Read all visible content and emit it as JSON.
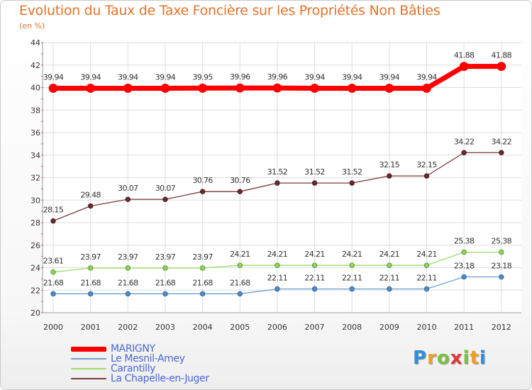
{
  "chart_data": {
    "type": "line",
    "title": "Evolution du Taux de Taxe Foncière sur les Propriétés Non Bâties",
    "subtitle": "(en %)",
    "xlabel": "",
    "ylabel": "",
    "ylim": [
      20,
      44
    ],
    "yticks": [
      20,
      22,
      24,
      26,
      28,
      30,
      32,
      34,
      36,
      38,
      40,
      42,
      44
    ],
    "grid": true,
    "categories": [
      "2000",
      "2001",
      "2002",
      "2003",
      "2004",
      "2005",
      "2006",
      "2007",
      "2008",
      "2009",
      "2010",
      "2011",
      "2012"
    ],
    "series": [
      {
        "name": "MARIGNY",
        "color": "#ff0000",
        "labels": [
          "39.94",
          "39.94",
          "39.94",
          "39.94",
          "39.95",
          "39.96",
          "39.96",
          "39.94",
          "39.94",
          "39.94",
          "39.94",
          "41.88",
          "41.88"
        ],
        "values": [
          39.94,
          39.94,
          39.94,
          39.94,
          39.95,
          39.96,
          39.96,
          39.94,
          39.94,
          39.94,
          39.94,
          41.88,
          41.88
        ]
      },
      {
        "name": "Le Mesnil-Amey",
        "color": "#6f9dd0",
        "labels": [
          "21.68",
          "21.68",
          "21.68",
          "21.68",
          "21.68",
          "21.68",
          "22.11",
          "22.11",
          "22.11",
          "22.11",
          "22.11",
          "23.18",
          "23.18"
        ],
        "values": [
          21.68,
          21.68,
          21.68,
          21.68,
          21.68,
          21.68,
          22.11,
          22.11,
          22.11,
          22.11,
          22.11,
          23.18,
          23.18
        ]
      },
      {
        "name": "Carantilly",
        "color": "#99dd66",
        "labels": [
          "23.61",
          "23.97",
          "23.97",
          "23.97",
          "23.97",
          "24.21",
          "24.21",
          "24.21",
          "24.21",
          "24.21",
          "24.21",
          "25.38",
          "25.38"
        ],
        "values": [
          23.61,
          23.97,
          23.97,
          23.97,
          23.97,
          24.21,
          24.21,
          24.21,
          24.21,
          24.21,
          24.21,
          25.38,
          25.38
        ]
      },
      {
        "name": "La Chapelle-en-Juger",
        "color": "#7a3a3a",
        "labels": [
          "28.15",
          "29.48",
          "30.07",
          "30.07",
          "30.76",
          "30.76",
          "31.52",
          "31.52",
          "31.52",
          "32.15",
          "32.15",
          "34.22",
          "34.22"
        ],
        "values": [
          28.15,
          29.48,
          30.07,
          30.07,
          30.76,
          30.76,
          31.52,
          31.52,
          31.52,
          32.15,
          32.15,
          34.22,
          34.22
        ]
      }
    ]
  },
  "legend": [
    {
      "label": "MARIGNY",
      "color": "#ff0000"
    },
    {
      "label": "Le Mesnil-Amey",
      "color": "#6f9dd0"
    },
    {
      "label": "Carantilly",
      "color": "#99dd66"
    },
    {
      "label": "La Chapelle-en-Juger",
      "color": "#7a3a3a"
    }
  ],
  "logo": {
    "letters": [
      "P",
      "r",
      "o",
      "x",
      "i",
      "t",
      "i"
    ],
    "colors": [
      "#2e8fd8",
      "#f0a020",
      "#7bc043",
      "#e03a3a",
      "#7bc043",
      "#f0a020",
      "#2e8fd8"
    ]
  }
}
